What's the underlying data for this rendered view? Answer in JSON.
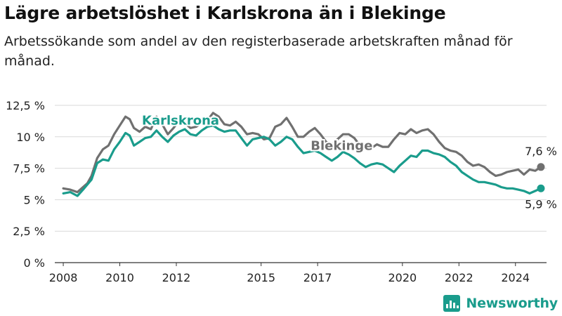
{
  "title": "Lägre arbetslöshet i Karlskrona än i Blekinge",
  "subtitle": "Arbetssökande som andel av den registerbaserade arbetskraften månad för månad.",
  "brand": {
    "name": "Newsworthy",
    "icon": "bar-chart-logo-icon",
    "color": "#1a9c8c"
  },
  "chart_data": {
    "type": "line",
    "grid": true,
    "ylim": [
      0,
      12.5
    ],
    "xlim": [
      2007.7,
      2025.1
    ],
    "y_ticks": [
      {
        "value": 0,
        "label": "0 %"
      },
      {
        "value": 2.5,
        "label": "2,5 %"
      },
      {
        "value": 5,
        "label": "5 %"
      },
      {
        "value": 7.5,
        "label": "7,5 %"
      },
      {
        "value": 10,
        "label": "10 %"
      },
      {
        "value": 12.5,
        "label": "12,5 %"
      }
    ],
    "x_ticks": [
      {
        "value": 2008,
        "label": "2008"
      },
      {
        "value": 2010,
        "label": "2010"
      },
      {
        "value": 2012,
        "label": "2012"
      },
      {
        "value": 2015,
        "label": "2015"
      },
      {
        "value": 2017,
        "label": "2017"
      },
      {
        "value": 2020,
        "label": "2020"
      },
      {
        "value": 2022,
        "label": "2022"
      },
      {
        "value": 2024,
        "label": "2024"
      }
    ],
    "series": [
      {
        "name": "Blekinge",
        "color": "#707070",
        "end_label": "7,6 %",
        "x": [
          2008.0,
          2008.25,
          2008.5,
          2008.7,
          2008.85,
          2009.0,
          2009.2,
          2009.4,
          2009.6,
          2009.8,
          2010.0,
          2010.2,
          2010.35,
          2010.5,
          2010.7,
          2010.9,
          2011.1,
          2011.3,
          2011.5,
          2011.7,
          2011.9,
          2012.1,
          2012.3,
          2012.5,
          2012.7,
          2012.9,
          2013.1,
          2013.3,
          2013.5,
          2013.7,
          2013.9,
          2014.1,
          2014.3,
          2014.5,
          2014.7,
          2014.9,
          2015.1,
          2015.3,
          2015.5,
          2015.7,
          2015.9,
          2016.1,
          2016.3,
          2016.5,
          2016.7,
          2016.9,
          2017.1,
          2017.3,
          2017.5,
          2017.7,
          2017.9,
          2018.1,
          2018.3,
          2018.5,
          2018.7,
          2018.9,
          2019.1,
          2019.3,
          2019.5,
          2019.7,
          2019.9,
          2020.1,
          2020.3,
          2020.5,
          2020.7,
          2020.9,
          2021.1,
          2021.3,
          2021.5,
          2021.7,
          2021.9,
          2022.1,
          2022.3,
          2022.5,
          2022.7,
          2022.9,
          2023.1,
          2023.3,
          2023.5,
          2023.7,
          2023.9,
          2024.1,
          2024.3,
          2024.5,
          2024.7,
          2024.9
        ],
        "values": [
          5.9,
          5.8,
          5.6,
          6.0,
          6.3,
          6.9,
          8.3,
          9.0,
          9.3,
          10.2,
          10.9,
          11.6,
          11.4,
          10.7,
          10.4,
          10.8,
          10.6,
          11.6,
          11.0,
          10.2,
          10.7,
          11.3,
          11.1,
          10.7,
          10.8,
          11.1,
          11.3,
          11.9,
          11.6,
          11.0,
          10.9,
          11.2,
          10.8,
          10.2,
          10.3,
          10.2,
          9.8,
          9.9,
          10.8,
          11.0,
          11.5,
          10.8,
          10.0,
          10.0,
          10.4,
          10.7,
          10.2,
          9.6,
          9.3,
          9.8,
          10.2,
          10.2,
          9.9,
          9.3,
          9.1,
          9.1,
          9.4,
          9.2,
          9.2,
          9.8,
          10.3,
          10.2,
          10.6,
          10.3,
          10.5,
          10.6,
          10.2,
          9.6,
          9.1,
          8.9,
          8.8,
          8.5,
          8.0,
          7.7,
          7.8,
          7.6,
          7.2,
          6.9,
          7.0,
          7.2,
          7.3,
          7.4,
          7.0,
          7.4,
          7.3,
          7.6
        ]
      },
      {
        "name": "Karlskrona",
        "color": "#1a9c8c",
        "end_label": "5,9 %",
        "x": [
          2008.0,
          2008.25,
          2008.5,
          2008.7,
          2008.85,
          2009.0,
          2009.2,
          2009.4,
          2009.6,
          2009.8,
          2010.0,
          2010.2,
          2010.35,
          2010.5,
          2010.7,
          2010.9,
          2011.1,
          2011.3,
          2011.5,
          2011.7,
          2011.9,
          2012.1,
          2012.3,
          2012.5,
          2012.7,
          2012.9,
          2013.1,
          2013.3,
          2013.5,
          2013.7,
          2013.9,
          2014.1,
          2014.3,
          2014.5,
          2014.7,
          2014.9,
          2015.1,
          2015.3,
          2015.5,
          2015.7,
          2015.9,
          2016.1,
          2016.3,
          2016.5,
          2016.7,
          2016.9,
          2017.1,
          2017.3,
          2017.5,
          2017.7,
          2017.9,
          2018.1,
          2018.3,
          2018.5,
          2018.7,
          2018.9,
          2019.1,
          2019.3,
          2019.5,
          2019.7,
          2019.9,
          2020.1,
          2020.3,
          2020.5,
          2020.7,
          2020.9,
          2021.1,
          2021.3,
          2021.5,
          2021.7,
          2021.9,
          2022.1,
          2022.3,
          2022.5,
          2022.7,
          2022.9,
          2023.1,
          2023.3,
          2023.5,
          2023.7,
          2023.9,
          2024.1,
          2024.3,
          2024.5,
          2024.7,
          2024.9
        ],
        "values": [
          5.5,
          5.6,
          5.3,
          5.8,
          6.2,
          6.6,
          7.9,
          8.2,
          8.1,
          9.0,
          9.6,
          10.3,
          10.1,
          9.3,
          9.6,
          9.9,
          10.0,
          10.5,
          10.0,
          9.6,
          10.1,
          10.4,
          10.6,
          10.2,
          10.1,
          10.5,
          10.8,
          10.9,
          10.6,
          10.4,
          10.5,
          10.5,
          9.9,
          9.3,
          9.8,
          9.9,
          10.0,
          9.8,
          9.3,
          9.6,
          10.0,
          9.8,
          9.2,
          8.7,
          8.8,
          8.9,
          8.7,
          8.4,
          8.1,
          8.4,
          8.8,
          8.6,
          8.3,
          7.9,
          7.6,
          7.8,
          7.9,
          7.8,
          7.5,
          7.2,
          7.7,
          8.1,
          8.5,
          8.4,
          8.9,
          8.9,
          8.7,
          8.6,
          8.4,
          8.0,
          7.7,
          7.2,
          6.9,
          6.6,
          6.4,
          6.4,
          6.3,
          6.2,
          6.0,
          5.9,
          5.9,
          5.8,
          5.7,
          5.5,
          5.7,
          5.9
        ]
      }
    ],
    "annotations": [
      {
        "text": "Karlskrona",
        "series": "Karlskrona",
        "x": 2012.15,
        "y": 11.3
      },
      {
        "text": "Blekinge",
        "series": "Blekinge",
        "x": 2017.85,
        "y": 9.3
      }
    ]
  }
}
